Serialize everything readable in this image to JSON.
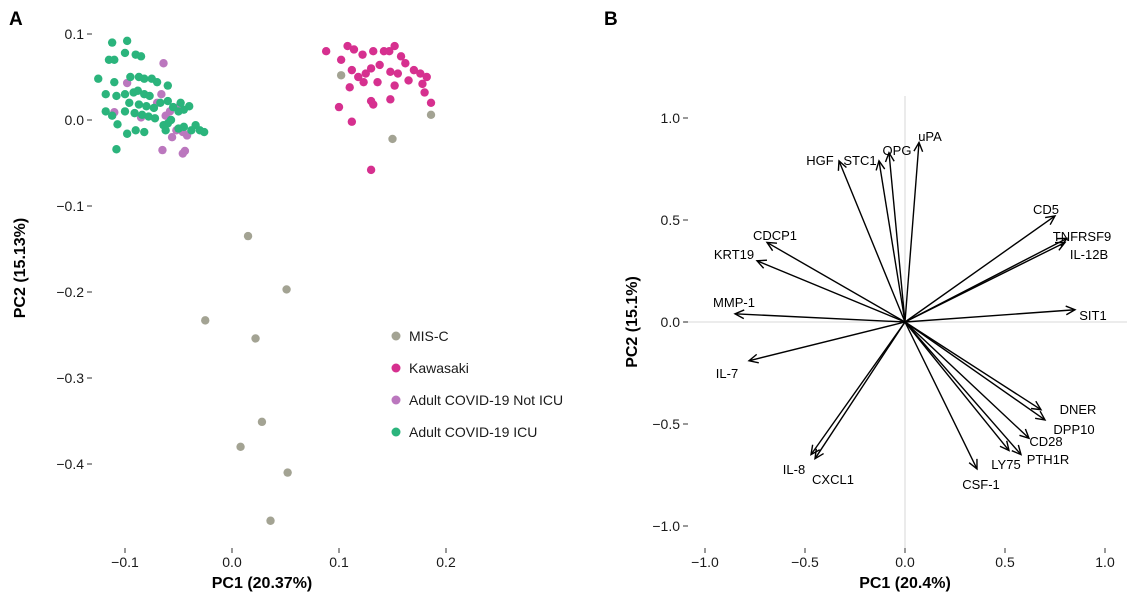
{
  "chart_data": [
    {
      "panel": "A",
      "type": "scatter",
      "xlabel": "PC1 (20.37%)",
      "ylabel": "PC2 (15.13%)",
      "xlim": [
        -0.135,
        0.205
      ],
      "ylim": [
        -0.485,
        0.11
      ],
      "xticks": [
        -0.1,
        0.0,
        0.1,
        0.2
      ],
      "xtick_labels": [
        "−0.1",
        "0.0",
        "0.1",
        "0.2"
      ],
      "yticks": [
        0.1,
        0.0,
        -0.1,
        -0.2,
        -0.3,
        -0.4
      ],
      "ytick_labels": [
        "0.1",
        "0.0",
        "−0.1",
        "−0.2",
        "−0.3",
        "−0.4"
      ],
      "grid": false,
      "legend_position": "right",
      "series": [
        {
          "name": "MIS-C",
          "color": "#a3a393",
          "points": [
            [
              0.015,
              -0.135
            ],
            [
              0.051,
              -0.197
            ],
            [
              -0.025,
              -0.233
            ],
            [
              0.022,
              -0.254
            ],
            [
              0.028,
              -0.351
            ],
            [
              0.008,
              -0.38
            ],
            [
              0.052,
              -0.41
            ],
            [
              0.036,
              -0.466
            ],
            [
              0.102,
              0.052
            ],
            [
              0.15,
              -0.022
            ],
            [
              0.186,
              0.006
            ]
          ]
        },
        {
          "name": "Kawasaki",
          "color": "#d6308f",
          "points": [
            [
              0.088,
              0.08
            ],
            [
              0.102,
              0.07
            ],
            [
              0.108,
              0.086
            ],
            [
              0.114,
              0.082
            ],
            [
              0.112,
              0.058
            ],
            [
              0.122,
              0.076
            ],
            [
              0.132,
              0.08
            ],
            [
              0.138,
              0.064
            ],
            [
              0.142,
              0.08
            ],
            [
              0.147,
              0.08
            ],
            [
              0.152,
              0.086
            ],
            [
              0.158,
              0.074
            ],
            [
              0.118,
              0.05
            ],
            [
              0.125,
              0.054
            ],
            [
              0.13,
              0.06
            ],
            [
              0.148,
              0.056
            ],
            [
              0.155,
              0.054
            ],
            [
              0.162,
              0.066
            ],
            [
              0.17,
              0.058
            ],
            [
              0.176,
              0.054
            ],
            [
              0.182,
              0.05
            ],
            [
              0.11,
              0.038
            ],
            [
              0.123,
              0.044
            ],
            [
              0.136,
              0.044
            ],
            [
              0.152,
              0.04
            ],
            [
              0.165,
              0.046
            ],
            [
              0.178,
              0.042
            ],
            [
              0.13,
              0.022
            ],
            [
              0.132,
              0.018
            ],
            [
              0.148,
              0.024
            ],
            [
              0.18,
              0.032
            ],
            [
              0.1,
              0.015
            ],
            [
              0.112,
              -0.002
            ],
            [
              0.186,
              0.02
            ],
            [
              0.13,
              -0.058
            ]
          ]
        },
        {
          "name": "Adult COVID-19 Not ICU",
          "color": "#bb77be",
          "points": [
            [
              -0.064,
              0.066
            ],
            [
              -0.098,
              0.043
            ],
            [
              -0.066,
              0.03
            ],
            [
              -0.07,
              0.02
            ],
            [
              -0.11,
              0.009
            ],
            [
              -0.05,
              0.015
            ],
            [
              -0.085,
              0.003
            ],
            [
              -0.062,
              0.005
            ],
            [
              -0.052,
              -0.012
            ],
            [
              -0.046,
              -0.014
            ],
            [
              -0.042,
              -0.018
            ],
            [
              -0.056,
              -0.02
            ],
            [
              -0.065,
              -0.035
            ],
            [
              -0.044,
              -0.036
            ],
            [
              -0.046,
              -0.039
            ],
            [
              -0.058,
              0.01
            ]
          ]
        },
        {
          "name": "Adult COVID-19 ICU",
          "color": "#2bb47c",
          "points": [
            [
              -0.112,
              0.09
            ],
            [
              -0.098,
              0.092
            ],
            [
              -0.1,
              0.078
            ],
            [
              -0.09,
              0.076
            ],
            [
              -0.085,
              0.074
            ],
            [
              -0.11,
              0.07
            ],
            [
              -0.115,
              0.07
            ],
            [
              -0.125,
              0.048
            ],
            [
              -0.11,
              0.044
            ],
            [
              -0.095,
              0.05
            ],
            [
              -0.087,
              0.05
            ],
            [
              -0.082,
              0.048
            ],
            [
              -0.075,
              0.048
            ],
            [
              -0.07,
              0.044
            ],
            [
              -0.118,
              0.03
            ],
            [
              -0.108,
              0.028
            ],
            [
              -0.1,
              0.03
            ],
            [
              -0.092,
              0.032
            ],
            [
              -0.088,
              0.034
            ],
            [
              -0.082,
              0.03
            ],
            [
              -0.077,
              0.028
            ],
            [
              -0.096,
              0.02
            ],
            [
              -0.087,
              0.018
            ],
            [
              -0.08,
              0.016
            ],
            [
              -0.073,
              0.014
            ],
            [
              -0.067,
              0.02
            ],
            [
              -0.06,
              0.022
            ],
            [
              -0.055,
              0.015
            ],
            [
              -0.05,
              0.01
            ],
            [
              -0.045,
              0.012
            ],
            [
              -0.04,
              0.016
            ],
            [
              -0.1,
              0.01
            ],
            [
              -0.091,
              0.008
            ],
            [
              -0.084,
              0.006
            ],
            [
              -0.078,
              0.004
            ],
            [
              -0.072,
              0.002
            ],
            [
              -0.06,
              0.04
            ],
            [
              -0.048,
              0.02
            ],
            [
              -0.118,
              0.01
            ],
            [
              -0.112,
              0.005
            ],
            [
              -0.107,
              -0.005
            ],
            [
              -0.09,
              -0.012
            ],
            [
              -0.082,
              -0.014
            ],
            [
              -0.064,
              -0.006
            ],
            [
              -0.06,
              -0.004
            ],
            [
              -0.057,
              0.0
            ],
            [
              -0.05,
              -0.01
            ],
            [
              -0.045,
              -0.008
            ],
            [
              -0.038,
              -0.012
            ],
            [
              -0.034,
              -0.006
            ],
            [
              -0.03,
              -0.012
            ],
            [
              -0.026,
              -0.014
            ],
            [
              -0.098,
              -0.016
            ],
            [
              -0.108,
              -0.034
            ],
            [
              -0.062,
              -0.012
            ]
          ]
        }
      ]
    },
    {
      "panel": "B",
      "type": "biplot",
      "xlabel": "PC1 (20.4%)",
      "ylabel": "PC2 (15.1%)",
      "xlim": [
        -1.07,
        1.1
      ],
      "ylim": [
        -1.1,
        1.12
      ],
      "xticks": [
        -1.0,
        -0.5,
        0.0,
        0.5,
        1.0
      ],
      "xtick_labels": [
        "−1.0",
        "−0.5",
        "0.0",
        "0.5",
        "1.0"
      ],
      "yticks": [
        1.0,
        0.5,
        0.0,
        -0.5,
        -1.0
      ],
      "ytick_labels": [
        "1.0 ",
        "0.5 ",
        "0.0 ",
        "−0.5 ",
        "−1.0 "
      ],
      "reference_lines": [
        0,
        0
      ],
      "vectors": [
        {
          "name": "uPA",
          "x": 0.07,
          "y": 0.88
        },
        {
          "name": "OPG",
          "x": -0.08,
          "y": 0.83
        },
        {
          "name": "STC1",
          "x": -0.13,
          "y": 0.79
        },
        {
          "name": "HGF",
          "x": -0.33,
          "y": 0.79
        },
        {
          "name": "CDCP1",
          "x": -0.69,
          "y": 0.39
        },
        {
          "name": "KRT19",
          "x": -0.74,
          "y": 0.3
        },
        {
          "name": "MMP-1",
          "x": -0.85,
          "y": 0.04
        },
        {
          "name": "IL-7",
          "x": -0.78,
          "y": -0.19
        },
        {
          "name": "IL-8",
          "x": -0.47,
          "y": -0.65
        },
        {
          "name": "CXCL1",
          "x": -0.45,
          "y": -0.67
        },
        {
          "name": "CSF-1",
          "x": 0.36,
          "y": -0.72
        },
        {
          "name": "LY75",
          "x": 0.52,
          "y": -0.63
        },
        {
          "name": "PTH1R",
          "x": 0.58,
          "y": -0.65
        },
        {
          "name": "CD28",
          "x": 0.62,
          "y": -0.57
        },
        {
          "name": "DPP10",
          "x": 0.7,
          "y": -0.48
        },
        {
          "name": "DNER",
          "x": 0.68,
          "y": -0.43
        },
        {
          "name": "SIT1",
          "x": 0.85,
          "y": 0.06
        },
        {
          "name": "IL-12B",
          "x": 0.8,
          "y": 0.39
        },
        {
          "name": "TNFRSF9",
          "x": 0.81,
          "y": 0.41
        },
        {
          "name": "CD5",
          "x": 0.75,
          "y": 0.52
        }
      ]
    }
  ],
  "panels": {
    "a": {
      "letter": "A"
    },
    "b": {
      "letter": "B"
    }
  }
}
